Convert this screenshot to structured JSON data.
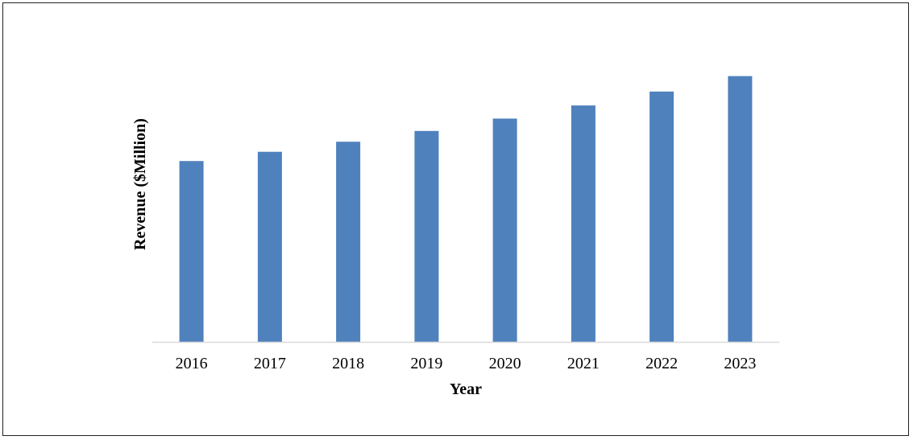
{
  "chart_data": {
    "type": "bar",
    "categories": [
      "2016",
      "2017",
      "2018",
      "2019",
      "2020",
      "2021",
      "2022",
      "2023"
    ],
    "values": [
      11.7,
      12.3,
      12.95,
      13.65,
      14.45,
      15.3,
      16.2,
      17.2
    ],
    "title": "",
    "xlabel": "Year",
    "ylabel": "Revenue ($Million)",
    "ylim": [
      0,
      19
    ],
    "grid": false,
    "legend": "none",
    "bar_color": "#4F81BD",
    "axis_line_color": "#D9D9D9"
  }
}
